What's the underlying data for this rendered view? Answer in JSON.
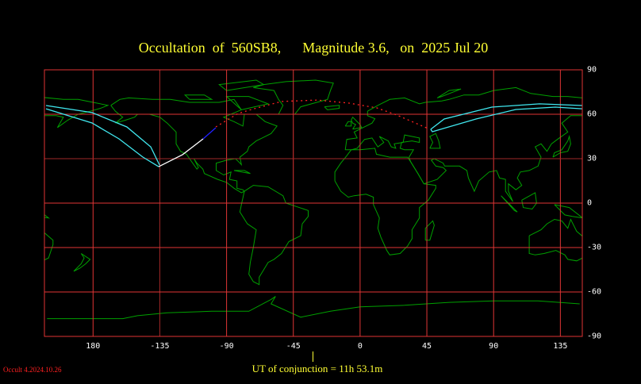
{
  "title": {
    "text": "Occultation  of  560SB8,      Magnitude 3.6,   on  2025 Jul 20",
    "object": "560SB8",
    "magnitude": "3.6",
    "date": "2025 Jul 20"
  },
  "axes": {
    "lon_labels": [
      {
        "lon": 180,
        "label": "180"
      },
      {
        "lon": -135,
        "label": "-135"
      },
      {
        "lon": -90,
        "label": "-90"
      },
      {
        "lon": -45,
        "label": "-45"
      },
      {
        "lon": 0,
        "label": "0"
      },
      {
        "lon": 45,
        "label": "45"
      },
      {
        "lon": 90,
        "label": "90"
      },
      {
        "lon": 135,
        "label": "135"
      }
    ],
    "lat_labels": [
      {
        "lat": 90,
        "label": "90"
      },
      {
        "lat": 60,
        "label": "60"
      },
      {
        "lat": 30,
        "label": "30"
      },
      {
        "lat": 0,
        "label": "0"
      },
      {
        "lat": -30,
        "label": "-30"
      },
      {
        "lat": -60,
        "label": "-60"
      },
      {
        "lat": -90,
        "label": "-90"
      }
    ]
  },
  "conjunction_text": "UT of conjunction = 11h 53.1m",
  "version": "Occult 4.2024.10.26",
  "colors": {
    "grid": "#e03535",
    "coast": "#00a000",
    "path_limits": "#40e8f0",
    "path_day": "#ffffff",
    "path_twilight": "#2020ff",
    "path_dark": "#ff2020",
    "text": "#ffff33"
  },
  "paths": {
    "west_upper": [
      [
        -211.7,
        65.9
      ],
      [
        -180.7,
        61.1
      ],
      [
        -157.2,
        51.4
      ],
      [
        -141.1,
        38.0
      ],
      [
        -135.2,
        25.7
      ]
    ],
    "west_lower": [
      [
        -211.7,
        63.7
      ],
      [
        -180.7,
        54.1
      ],
      [
        -162.5,
        43.4
      ],
      [
        -146.5,
        31.1
      ],
      [
        -135.8,
        24.6
      ]
    ],
    "centre_visible": [
      [
        -135.8,
        24.6
      ],
      [
        -119.7,
        32.7
      ],
      [
        -105.8,
        43.4
      ]
    ],
    "centre_twilight": [
      [
        -105.8,
        43.4
      ],
      [
        -97.3,
        50.9
      ]
    ],
    "centre_invisible": [
      [
        -97.3,
        51.4
      ],
      [
        -82.3,
        60.5
      ],
      [
        -71.6,
        63.7
      ],
      [
        -52.9,
        68.6
      ],
      [
        -28.8,
        69.6
      ],
      [
        -7.4,
        67.5
      ],
      [
        11.3,
        64.3
      ],
      [
        24.6,
        59.5
      ],
      [
        46.0,
        50.3
      ]
    ],
    "east_upper": [
      [
        47.6,
        49.8
      ],
      [
        56.7,
        56.8
      ],
      [
        88.8,
        64.8
      ],
      [
        120.9,
        67.0
      ],
      [
        149.8,
        65.9
      ]
    ],
    "east_lower": [
      [
        47.6,
        49.8
      ],
      [
        48.7,
        48.2
      ],
      [
        78.1,
        56.8
      ],
      [
        104.9,
        63.2
      ],
      [
        131.6,
        64.8
      ],
      [
        149.8,
        63.7
      ]
    ]
  }
}
